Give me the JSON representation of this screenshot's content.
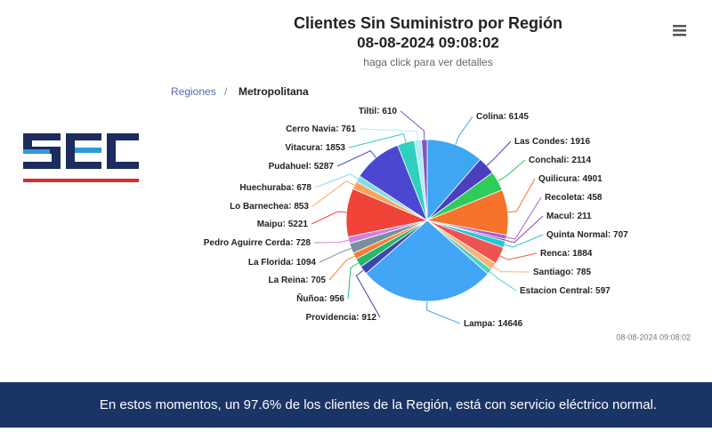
{
  "header": {
    "title": "Clientes Sin Suministro por Región",
    "datetime": "08-08-2024 09:08:02",
    "subtitle": "haga click para ver detalles"
  },
  "breadcrumb": {
    "root": "Regiones",
    "separator": "/",
    "current": "Metropolitana"
  },
  "chart_data": {
    "type": "pie",
    "categories": [
      "Colina",
      "Las Condes",
      "Conchali",
      "Quilicura",
      "Recoleta",
      "Macul",
      "Quinta Normal",
      "Renca",
      "Santiago",
      "Estacion Central",
      "Lampa",
      "Providencia",
      "Ñuñoa",
      "La Reina",
      "La Florida",
      "Pedro Aguirre Cerda",
      "Maipu",
      "Lo Barnechea",
      "Huechuraba",
      "Pudahuel",
      "Vitacura",
      "Cerro Navia",
      "Tiltil"
    ],
    "values": [
      6145,
      1916,
      2114,
      4901,
      458,
      211,
      707,
      1884,
      785,
      597,
      14646,
      912,
      956,
      705,
      1094,
      728,
      5221,
      853,
      678,
      5287,
      1853,
      761,
      610
    ],
    "colors": [
      "#3ea6f2",
      "#4a3fbf",
      "#2ecc5a",
      "#f5732a",
      "#a85fd0",
      "#8e44ad",
      "#26c6da",
      "#ef5350",
      "#ffb074",
      "#4dd0c4",
      "#42a5f5",
      "#3949ab",
      "#26b86a",
      "#ff7a30",
      "#78909c",
      "#ce7fe0",
      "#f04438",
      "#ffa35c",
      "#80deea",
      "#4b47d0",
      "#2ed0c0",
      "#b2ebf2",
      "#7e57c2"
    ]
  },
  "timestamp": "08-08-2024 09:08:02",
  "footer": {
    "text": "En estos momentos, un 97.6% de los clientes de la Región, está con servicio eléctrico normal."
  }
}
